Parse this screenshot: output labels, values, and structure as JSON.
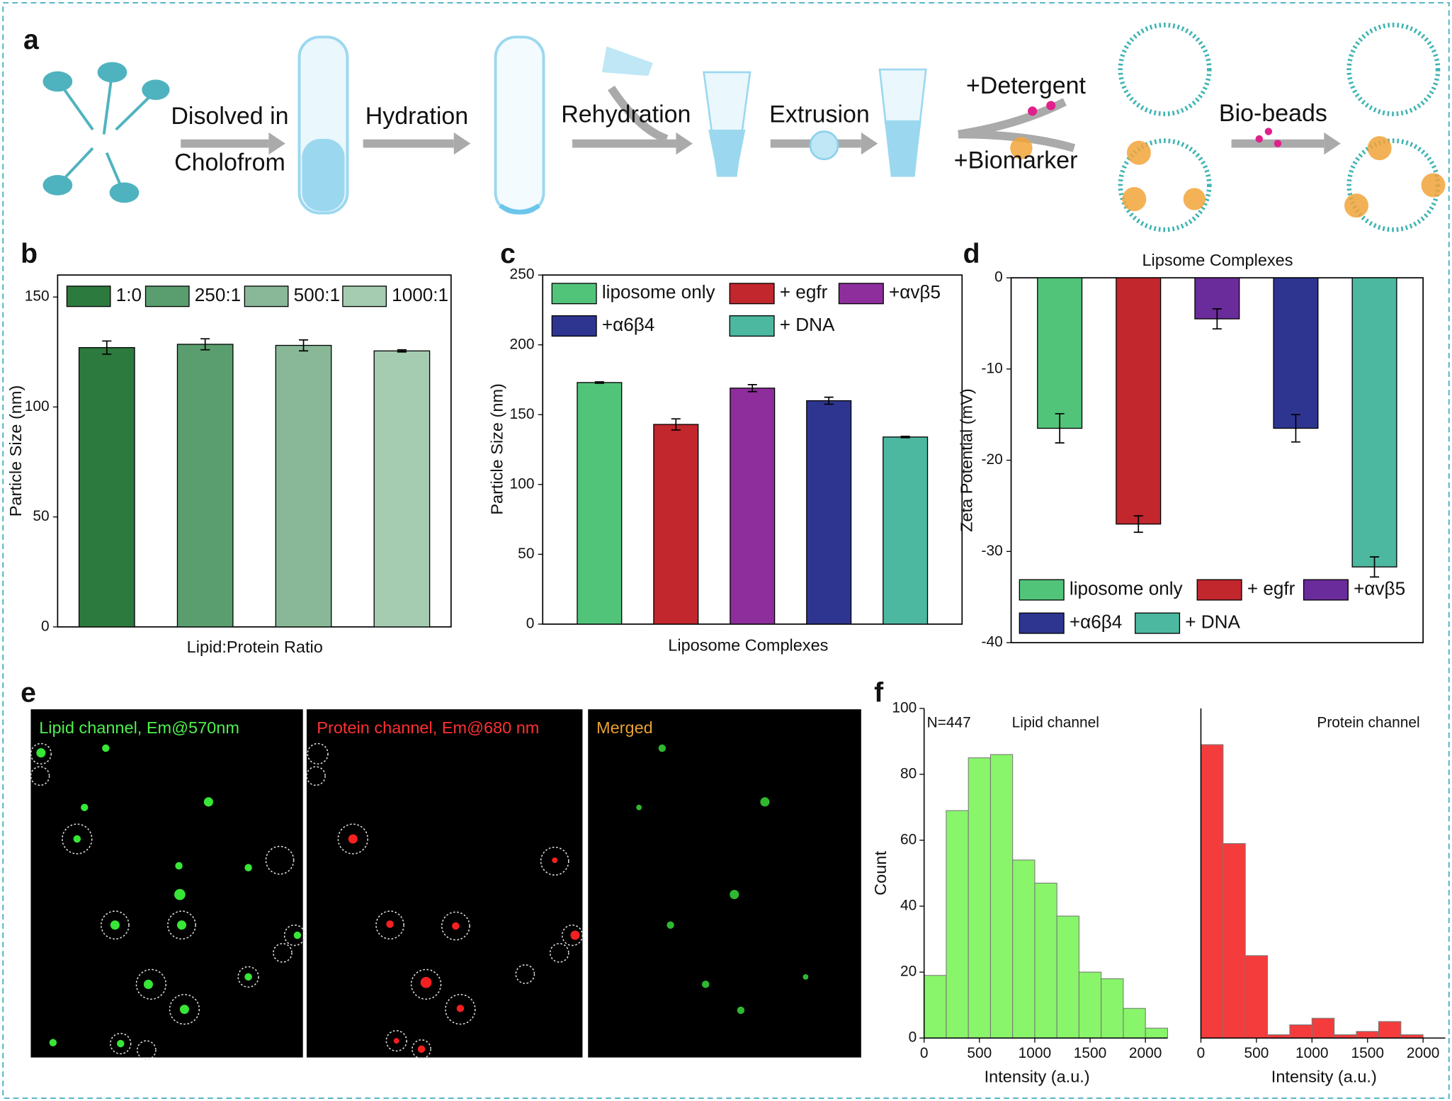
{
  "panel_labels": [
    "a",
    "b",
    "c",
    "d",
    "e",
    "f"
  ],
  "schematic": {
    "dissolve": [
      "Disolved in",
      "Cholofrom"
    ],
    "hydration": "Hydration",
    "rehydration": "Rehydration",
    "extrusion": "Extrusion",
    "detergent": "+Detergent",
    "biomarker": "+Biomarker",
    "biobeads": "Bio-beads"
  },
  "micrographs": {
    "labels": [
      "Lipid channel, Em@570nm",
      "Protein channel, Em@680 nm",
      "Merged"
    ]
  },
  "chart_data": [
    {
      "type": "bar",
      "xlabel": "Lipid:Protein Ratio",
      "ylabel": "Particle Size (nm)",
      "categories": [
        "1:0",
        "250:1",
        "500:1",
        "1000:1"
      ],
      "values": [
        127,
        128.5,
        128,
        125.5
      ],
      "errors": [
        3,
        2.5,
        2.5,
        0.5
      ],
      "colors": [
        "#2d7a3e",
        "#5a9e6f",
        "#88b898",
        "#a5ccb0"
      ],
      "ylim": [
        0,
        160
      ],
      "yticks": [
        0,
        50,
        100,
        150
      ]
    },
    {
      "type": "bar",
      "xlabel": "Liposome Complexes",
      "ylabel": "Particle Size (nm)",
      "categories": [
        "liposome only",
        "+ egfr",
        "+αvβ5",
        "+α6β4",
        "+ DNA"
      ],
      "values": [
        173,
        143,
        169,
        160,
        134
      ],
      "errors": [
        0.5,
        4,
        2.5,
        2.5,
        0.5
      ],
      "colors": [
        "#52c47a",
        "#c1272d",
        "#8e2e9c",
        "#2e3590",
        "#4db8a0"
      ],
      "ylim": [
        0,
        250
      ],
      "yticks": [
        0,
        50,
        100,
        150,
        200,
        250
      ]
    },
    {
      "type": "bar",
      "xlabel": "Lipsome Complexes",
      "ylabel": "Zeta Potential (mV)",
      "categories": [
        "liposome only",
        "+ egfr",
        "+αvβ5",
        "+α6β4",
        "+ DNA"
      ],
      "values": [
        -16.5,
        -27,
        -4.5,
        -16.5,
        -31.7
      ],
      "errors": [
        1.6,
        0.9,
        1.1,
        1.5,
        1.1
      ],
      "colors": [
        "#52c47a",
        "#c1272d",
        "#6a2c9a",
        "#2e3590",
        "#4db8a0"
      ],
      "ylim": [
        -40,
        0
      ],
      "yticks": [
        0,
        -10,
        -20,
        -30,
        -40
      ]
    },
    {
      "type": "histogram",
      "title": "Lipid channel",
      "annotation": "N=447",
      "xlabel": "Intensity (a.u.)",
      "ylabel": "Count",
      "bins": [
        0,
        200,
        400,
        600,
        800,
        1000,
        1200,
        1400,
        1600,
        1800,
        2000,
        2200
      ],
      "counts": [
        19,
        69,
        85,
        86,
        54,
        47,
        37,
        20,
        18,
        9,
        3
      ],
      "color": "#88f56a",
      "xlim": [
        0,
        2200
      ],
      "xticks": [
        0,
        500,
        1000,
        1500,
        2000
      ],
      "ylim": [
        0,
        100
      ],
      "yticks": [
        0,
        20,
        40,
        60,
        80,
        100
      ]
    },
    {
      "type": "histogram",
      "title": "Protein channel",
      "xlabel": "Intensity (a.u.)",
      "bins": [
        0,
        200,
        400,
        600,
        800,
        1000,
        1200,
        1400,
        1600,
        1800,
        2000
      ],
      "counts": [
        89,
        59,
        25,
        1,
        4,
        6,
        1,
        2,
        5,
        1
      ],
      "color": "#f53c3c",
      "xlim": [
        0,
        2200
      ],
      "xticks": [
        0,
        500,
        1000,
        1500,
        2000
      ],
      "ylim": [
        0,
        100
      ]
    }
  ]
}
